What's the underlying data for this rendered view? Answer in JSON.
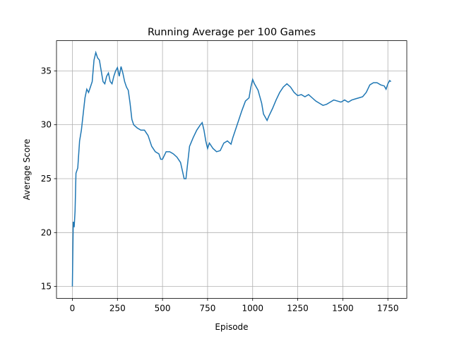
{
  "chart_data": {
    "type": "line",
    "title": "Running Average per 100 Games",
    "x_label": "Episode",
    "y_label": "Average Score",
    "x": [
      0,
      5,
      10,
      15,
      20,
      30,
      40,
      50,
      60,
      70,
      80,
      90,
      100,
      110,
      120,
      130,
      140,
      150,
      160,
      170,
      180,
      190,
      200,
      210,
      220,
      230,
      240,
      250,
      260,
      270,
      280,
      290,
      300,
      310,
      320,
      330,
      340,
      360,
      380,
      400,
      420,
      440,
      460,
      480,
      490,
      500,
      520,
      540,
      560,
      580,
      600,
      620,
      630,
      640,
      650,
      670,
      690,
      710,
      720,
      730,
      740,
      750,
      760,
      780,
      800,
      820,
      840,
      860,
      880,
      890,
      900,
      920,
      940,
      960,
      980,
      990,
      1000,
      1010,
      1030,
      1050,
      1060,
      1080,
      1090,
      1110,
      1130,
      1150,
      1170,
      1190,
      1210,
      1230,
      1250,
      1270,
      1290,
      1310,
      1330,
      1350,
      1370,
      1390,
      1410,
      1430,
      1450,
      1470,
      1490,
      1510,
      1530,
      1550,
      1570,
      1590,
      1610,
      1630,
      1650,
      1670,
      1690,
      1710,
      1730,
      1740,
      1750,
      1760,
      1767
    ],
    "series": [
      {
        "color": "#1f77b4",
        "values": [
          15,
          21,
          20.5,
          22,
          25.5,
          26,
          28.5,
          29.5,
          31,
          32.5,
          33.3,
          33,
          33.5,
          34,
          36,
          36.7,
          36.2,
          36,
          35,
          34,
          33.8,
          34.5,
          34.8,
          34,
          33.8,
          34.5,
          35,
          35.3,
          34.5,
          35.4,
          34.8,
          34,
          33.5,
          33.2,
          32,
          30.5,
          30,
          29.7,
          29.5,
          29.5,
          29,
          28,
          27.5,
          27.3,
          26.8,
          26.8,
          27.5,
          27.5,
          27.3,
          27,
          26.5,
          25,
          25,
          26.5,
          28,
          28.8,
          29.5,
          30,
          30.2,
          29.5,
          28.5,
          27.8,
          28.3,
          27.8,
          27.5,
          27.6,
          28.3,
          28.5,
          28.2,
          28.8,
          29.3,
          30.3,
          31.3,
          32.2,
          32.5,
          33.5,
          34.2,
          33.8,
          33.2,
          32,
          31,
          30.4,
          30.8,
          31.5,
          32.3,
          33,
          33.5,
          33.8,
          33.5,
          33,
          32.7,
          32.8,
          32.6,
          32.8,
          32.5,
          32.2,
          32,
          31.8,
          31.9,
          32.1,
          32.3,
          32.2,
          32.1,
          32.3,
          32.1,
          32.3,
          32.4,
          32.5,
          32.6,
          33,
          33.7,
          33.9,
          33.9,
          33.7,
          33.6,
          33.3,
          33.8,
          34.1,
          34
        ]
      }
    ],
    "xlim": [
      -88,
      1855
    ],
    "ylim": [
      13.9,
      37.8
    ],
    "xticks": [
      0,
      250,
      500,
      750,
      1000,
      1250,
      1500,
      1750
    ],
    "yticks": [
      15,
      20,
      25,
      30,
      35
    ],
    "grid": true
  }
}
